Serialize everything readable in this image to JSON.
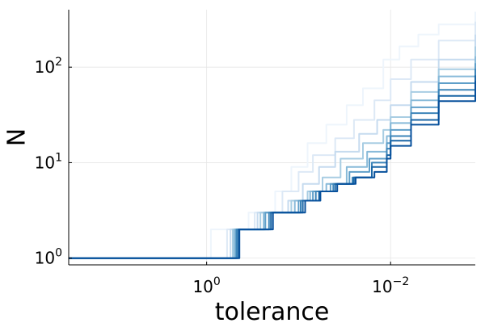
{
  "chart_data": {
    "type": "line",
    "title": "",
    "xlabel": "tolerance",
    "ylabel": "N",
    "xscale": "log10",
    "yscale": "log10",
    "x_reversed": true,
    "xlim": [
      31.6,
      0.0012
    ],
    "ylim": [
      0.85,
      400
    ],
    "grid": true,
    "legend": "none",
    "x_ticks": [
      {
        "value": 1,
        "base": "10",
        "exp": "0"
      },
      {
        "value": 0.01,
        "base": "10",
        "exp": "−2"
      }
    ],
    "y_ticks": [
      {
        "value": 1,
        "base": "10",
        "exp": "0"
      },
      {
        "value": 10,
        "base": "10",
        "exp": "1"
      },
      {
        "value": 100,
        "base": "10",
        "exp": "2"
      }
    ],
    "colors": [
      "#eef5fc",
      "#dde9f6",
      "#c6dbef",
      "#a8cde3",
      "#88bad9",
      "#5f9fc9",
      "#3d85b9",
      "#1a66a6",
      "#08519c"
    ],
    "series": [
      {
        "x": [
          31.6,
          1.0,
          0.9,
          0.5,
          0.35,
          0.25,
          0.18,
          0.12,
          0.08,
          0.05,
          0.03,
          0.02,
          0.012,
          0.008,
          0.005,
          0.003,
          0.0012
        ],
        "y": [
          1,
          1,
          2,
          2,
          3,
          3,
          5,
          9,
          16,
          25,
          40,
          60,
          120,
          165,
          220,
          280,
          380
        ]
      },
      {
        "x": [
          31.6,
          0.7,
          0.6,
          0.35,
          0.3,
          0.22,
          0.15,
          0.1,
          0.07,
          0.04,
          0.025,
          0.015,
          0.01,
          0.006,
          0.003,
          0.0012
        ],
        "y": [
          1,
          1,
          2,
          2,
          3,
          3,
          5,
          8,
          12,
          18,
          28,
          45,
          75,
          120,
          190,
          300
        ]
      },
      {
        "x": [
          31.6,
          0.6,
          0.55,
          0.3,
          0.28,
          0.2,
          0.13,
          0.09,
          0.06,
          0.04,
          0.022,
          0.014,
          0.01,
          0.006,
          0.003,
          0.0012
        ],
        "y": [
          1,
          1,
          2,
          2,
          3,
          3,
          4,
          6,
          9,
          13,
          20,
          28,
          40,
          70,
          120,
          220
        ]
      },
      {
        "x": [
          31.6,
          0.55,
          0.52,
          0.28,
          0.26,
          0.17,
          0.12,
          0.08,
          0.055,
          0.035,
          0.02,
          0.012,
          0.01,
          0.006,
          0.003,
          0.0012
        ],
        "y": [
          1,
          1,
          2,
          2,
          3,
          3,
          4,
          5,
          7,
          11,
          16,
          22,
          30,
          55,
          95,
          165
        ]
      },
      {
        "x": [
          31.6,
          0.52,
          0.5,
          0.25,
          0.24,
          0.15,
          0.11,
          0.075,
          0.05,
          0.03,
          0.018,
          0.011,
          0.01,
          0.006,
          0.003,
          0.0012
        ],
        "y": [
          1,
          1,
          2,
          2,
          3,
          3,
          4,
          5,
          6,
          9,
          13,
          19,
          26,
          45,
          80,
          130
        ]
      },
      {
        "x": [
          31.6,
          0.5,
          0.48,
          0.24,
          0.23,
          0.14,
          0.1,
          0.07,
          0.045,
          0.028,
          0.017,
          0.011,
          0.01,
          0.006,
          0.003,
          0.0012
        ],
        "y": [
          1,
          1,
          2,
          2,
          3,
          3,
          4,
          5,
          6,
          8,
          11,
          16,
          22,
          38,
          68,
          110
        ]
      },
      {
        "x": [
          31.6,
          0.48,
          0.47,
          0.22,
          0.21,
          0.13,
          0.095,
          0.065,
          0.042,
          0.026,
          0.016,
          0.011,
          0.01,
          0.006,
          0.003,
          0.0012
        ],
        "y": [
          1,
          1,
          2,
          2,
          3,
          3,
          4,
          5,
          6,
          7,
          10,
          14,
          19,
          33,
          58,
          96
        ]
      },
      {
        "x": [
          31.6,
          0.46,
          0.45,
          0.21,
          0.2,
          0.12,
          0.09,
          0.06,
          0.04,
          0.025,
          0.016,
          0.011,
          0.01,
          0.006,
          0.003,
          0.0012
        ],
        "y": [
          1,
          1,
          2,
          2,
          3,
          3,
          4,
          5,
          6,
          7,
          9,
          12,
          17,
          28,
          50,
          82
        ]
      },
      {
        "x": [
          31.6,
          0.45,
          0.44,
          0.2,
          0.19,
          0.11,
          0.085,
          0.058,
          0.038,
          0.024,
          0.015,
          0.011,
          0.01,
          0.006,
          0.003,
          0.0012
        ],
        "y": [
          1,
          1,
          2,
          2,
          3,
          3,
          4,
          5,
          6,
          7,
          8,
          11,
          15,
          25,
          44,
          72
        ]
      }
    ]
  }
}
